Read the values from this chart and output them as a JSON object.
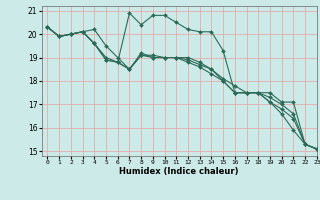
{
  "title": "",
  "xlabel": "Humidex (Indice chaleur)",
  "ylabel": "",
  "background_color": "#cceae7",
  "grid_color": "#e8a0a0",
  "line_color": "#2d6b58",
  "xlim": [
    -0.5,
    23
  ],
  "ylim": [
    14.8,
    21.2
  ],
  "xticks": [
    0,
    1,
    2,
    3,
    4,
    5,
    6,
    7,
    8,
    9,
    10,
    11,
    12,
    13,
    14,
    15,
    16,
    17,
    18,
    19,
    20,
    21,
    22,
    23
  ],
  "yticks": [
    15,
    16,
    17,
    18,
    19,
    20,
    21
  ],
  "lines": [
    {
      "x": [
        0,
        1,
        2,
        3,
        4,
        5,
        6,
        7,
        8,
        9,
        10,
        11,
        12,
        13,
        14,
        15,
        16,
        17,
        18,
        19,
        20,
        21,
        22,
        23
      ],
      "y": [
        20.3,
        19.9,
        20.0,
        20.1,
        20.2,
        19.5,
        19.0,
        18.5,
        19.1,
        19.1,
        19.0,
        19.0,
        18.9,
        18.7,
        18.5,
        18.1,
        17.8,
        17.5,
        17.5,
        17.1,
        16.6,
        15.9,
        15.3,
        15.1
      ]
    },
    {
      "x": [
        0,
        1,
        2,
        3,
        4,
        5,
        6,
        7,
        8,
        9,
        10,
        11,
        12,
        13,
        14,
        15,
        16,
        17,
        18,
        19,
        20,
        21,
        22,
        23
      ],
      "y": [
        20.3,
        19.9,
        20.0,
        20.1,
        19.6,
        18.9,
        18.8,
        20.9,
        20.4,
        20.8,
        20.8,
        20.5,
        20.2,
        20.1,
        20.1,
        19.3,
        17.5,
        17.5,
        17.5,
        17.5,
        17.1,
        17.1,
        15.3,
        15.1
      ]
    },
    {
      "x": [
        0,
        1,
        2,
        3,
        4,
        5,
        6,
        7,
        8,
        9,
        10,
        11,
        12,
        13,
        14,
        15,
        16,
        17,
        18,
        19,
        20,
        21,
        22,
        23
      ],
      "y": [
        20.3,
        19.9,
        20.0,
        20.1,
        19.6,
        19.0,
        18.8,
        18.5,
        19.1,
        19.0,
        19.0,
        19.0,
        18.8,
        18.6,
        18.3,
        18.0,
        17.5,
        17.5,
        17.5,
        17.3,
        17.0,
        16.6,
        15.3,
        15.1
      ]
    },
    {
      "x": [
        0,
        1,
        2,
        3,
        4,
        5,
        6,
        7,
        8,
        9,
        10,
        11,
        12,
        13,
        14,
        15,
        16,
        17,
        18,
        19,
        20,
        21,
        22,
        23
      ],
      "y": [
        20.3,
        19.9,
        20.0,
        20.1,
        19.6,
        18.9,
        18.8,
        18.5,
        19.2,
        19.0,
        19.0,
        19.0,
        19.0,
        18.8,
        18.5,
        18.0,
        17.5,
        17.5,
        17.5,
        17.1,
        16.8,
        16.4,
        15.3,
        15.1
      ]
    }
  ]
}
